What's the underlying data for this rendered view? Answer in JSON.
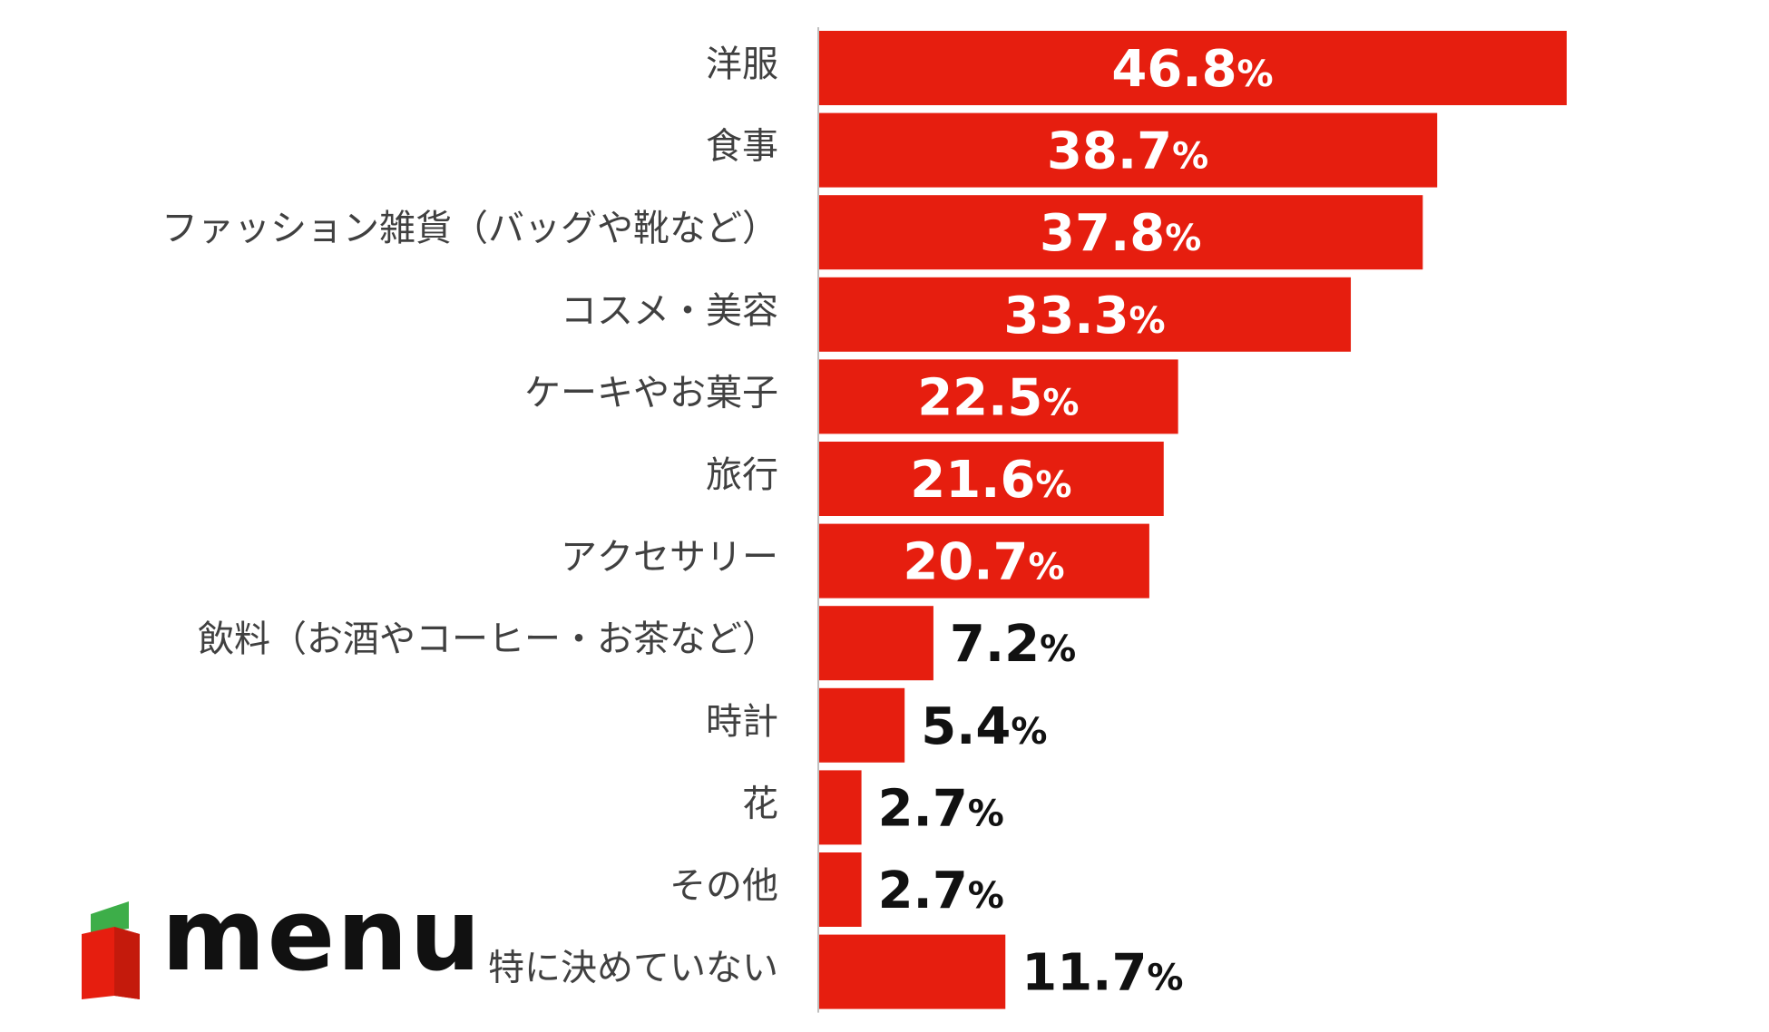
{
  "chart_data": {
    "type": "bar",
    "orientation": "horizontal",
    "categories": [
      "洋服",
      "食事",
      "ファッション雑貨（バッグや靴など）",
      "コスメ・美容",
      "ケーキやお菓子",
      "旅行",
      "アクセサリー",
      "飲料（お酒やコーヒー・お茶など）",
      "時計",
      "花",
      "その他",
      "特に決めていない"
    ],
    "values": [
      46.8,
      38.7,
      37.8,
      33.3,
      22.5,
      21.6,
      20.7,
      7.2,
      5.4,
      2.7,
      2.7,
      11.7
    ],
    "value_suffix": "%",
    "xlim": [
      0,
      46.8
    ],
    "grid": false,
    "legend": "none",
    "bar_color": "#e61e0f"
  },
  "logo": {
    "text": "menu"
  },
  "colors": {
    "bar": "#e61e0f",
    "label_inside": "#ffffff",
    "label_outside": "#111111",
    "category_text": "#404040",
    "axis": "#bfbfbf",
    "logo_green": "#3dae49",
    "logo_red": "#e61e0f"
  }
}
